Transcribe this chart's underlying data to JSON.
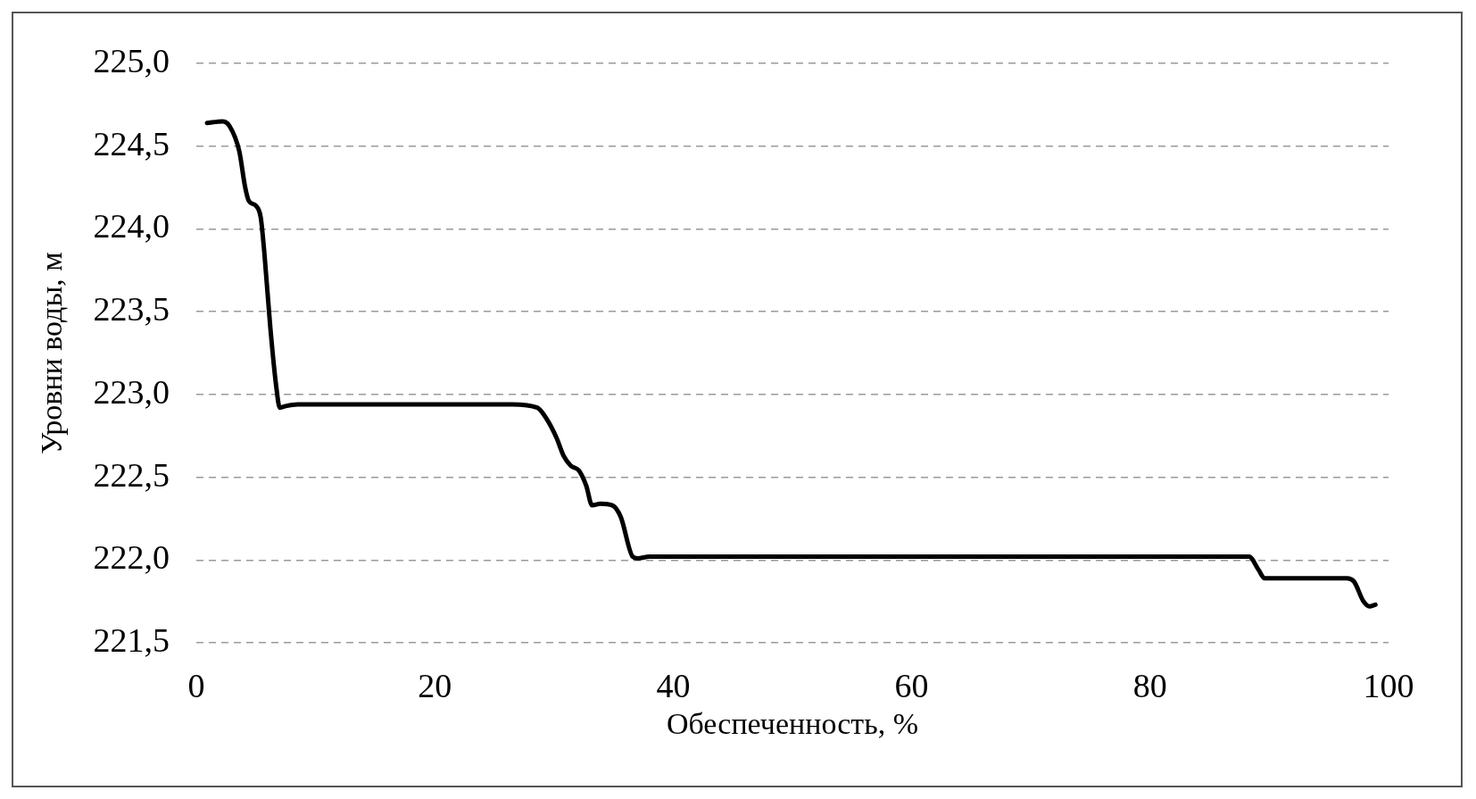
{
  "chart_data": {
    "type": "line",
    "xlabel": "Обеспеченность, %",
    "ylabel": "Уровни воды, м",
    "x": [
      0.9,
      2.2,
      2.8,
      3.6,
      4.1,
      4.4,
      5.0,
      5.4,
      5.7,
      6.2,
      6.7,
      7.0,
      7.5,
      8.5,
      15,
      26.5,
      28.6,
      29.4,
      30.2,
      30.8,
      31.4,
      32.1,
      32.7,
      33.2,
      33.9,
      34.9,
      35.6,
      36.6,
      37.0,
      38,
      60,
      88.3,
      89.1,
      89.6,
      96.5,
      97.1,
      97.9,
      98.4,
      98.9
    ],
    "series": [
      {
        "color": "#000000",
        "values": [
          224.64,
          224.65,
          224.62,
          224.47,
          224.25,
          224.17,
          224.14,
          224.07,
          223.86,
          223.41,
          223.05,
          222.92,
          222.93,
          222.94,
          222.94,
          222.94,
          222.92,
          222.85,
          222.74,
          222.63,
          222.57,
          222.54,
          222.45,
          222.33,
          222.34,
          222.33,
          222.26,
          222.02,
          222.01,
          222.02,
          222.02,
          222.02,
          221.94,
          221.89,
          221.89,
          221.87,
          221.75,
          221.72,
          221.73
        ]
      }
    ],
    "xlim": [
      0,
      100
    ],
    "xticks": [
      0,
      20,
      40,
      60,
      80,
      100
    ],
    "ylim": [
      221.5,
      225
    ],
    "yticks": [
      {
        "value": 221.5,
        "label": "221,5"
      },
      {
        "value": 222,
        "label": "222,0"
      },
      {
        "value": 222.5,
        "label": "222,5"
      },
      {
        "value": 223,
        "label": "223,0"
      },
      {
        "value": 223.5,
        "label": "223,5"
      },
      {
        "value": 224,
        "label": "224,0"
      },
      {
        "value": 224.5,
        "label": "224,5"
      },
      {
        "value": 225,
        "label": "225,0"
      }
    ],
    "grid": "y",
    "marker": "none",
    "line_style": "solid"
  }
}
